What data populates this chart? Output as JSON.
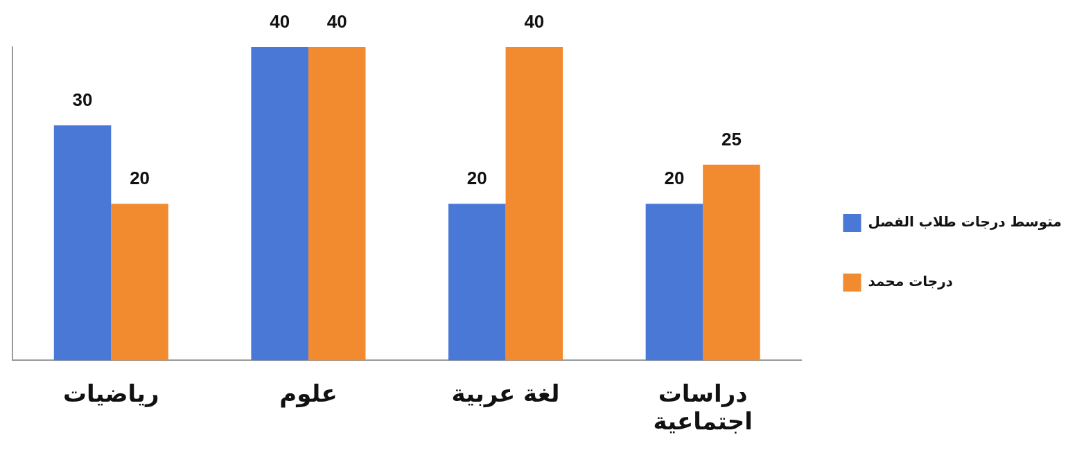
{
  "chart_data": {
    "type": "bar",
    "categories": [
      "رياضيات",
      "علوم",
      "لغة عربية",
      "دراسات اجتماعية"
    ],
    "series": [
      {
        "name": "متوسط درجات طلاب الفصل",
        "color": "#4a78d6",
        "values": [
          30,
          40,
          20,
          20
        ]
      },
      {
        "name": "درجات محمد",
        "color": "#f28a30",
        "values": [
          20,
          40,
          40,
          25
        ]
      }
    ],
    "data_labels": true,
    "legend": "right",
    "grid": false,
    "tick_labels": "x"
  }
}
